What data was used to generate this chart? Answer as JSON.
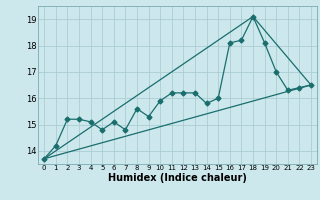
{
  "title": "",
  "xlabel": "Humidex (Indice chaleur)",
  "bg_color": "#cce8ec",
  "grid_color": "#aacdd4",
  "line_color": "#1a6e6e",
  "xlim": [
    -0.5,
    23.5
  ],
  "ylim": [
    13.5,
    19.5
  ],
  "xticks": [
    0,
    1,
    2,
    3,
    4,
    5,
    6,
    7,
    8,
    9,
    10,
    11,
    12,
    13,
    14,
    15,
    16,
    17,
    18,
    19,
    20,
    21,
    22,
    23
  ],
  "yticks": [
    14,
    15,
    16,
    17,
    18,
    19
  ],
  "series1_x": [
    0,
    1,
    2,
    3,
    4,
    5,
    6,
    7,
    8,
    9,
    10,
    11,
    12,
    13,
    14,
    15,
    16,
    17,
    18,
    19,
    20,
    21,
    22,
    23
  ],
  "series1_y": [
    13.7,
    14.2,
    15.2,
    15.2,
    15.1,
    14.8,
    15.1,
    14.8,
    15.6,
    15.3,
    15.9,
    16.2,
    16.2,
    16.2,
    15.8,
    16.0,
    18.1,
    18.2,
    19.1,
    18.1,
    17.0,
    16.3,
    16.4,
    16.5
  ],
  "series2_x": [
    0,
    23
  ],
  "series2_y": [
    13.7,
    16.5
  ],
  "series3_x": [
    0,
    18,
    23
  ],
  "series3_y": [
    13.7,
    19.1,
    16.5
  ]
}
